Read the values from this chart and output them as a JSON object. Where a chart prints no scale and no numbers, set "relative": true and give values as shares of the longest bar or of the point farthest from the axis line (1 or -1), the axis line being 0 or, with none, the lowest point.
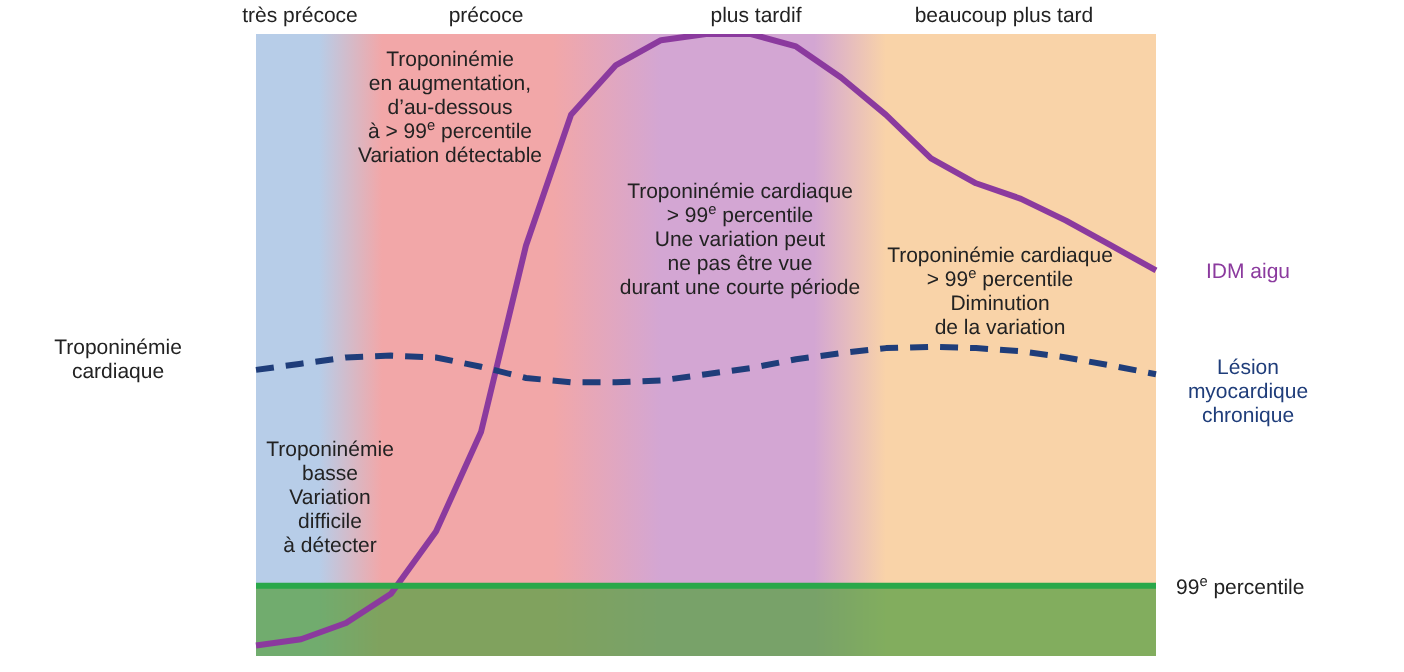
{
  "chart_data": {
    "type": "line",
    "relative": true,
    "ylabel": "Troponinémie cardiaque",
    "categories": [
      null,
      null,
      null,
      null,
      null,
      null,
      null,
      null,
      null,
      null,
      null,
      null,
      null,
      null,
      null,
      null,
      null,
      null,
      null,
      null,
      null
    ],
    "series": [
      {
        "name": "IDM aigu",
        "color": "#8b3a9e",
        "line_style": "solid",
        "values": [
          0.017,
          0.027,
          0.053,
          0.1,
          0.2,
          0.36,
          0.66,
          0.87,
          0.95,
          0.99,
          1,
          1,
          0.98,
          0.93,
          0.87,
          0.8,
          0.76,
          0.735,
          0.7,
          0.66,
          0.62
        ]
      },
      {
        "name": "Lésion myocardique chronique",
        "color": "#1f3d7a",
        "line_style": "dashed",
        "values": [
          0.46,
          0.47,
          0.48,
          0.483,
          0.48,
          0.465,
          0.447,
          0.44,
          0.44,
          0.443,
          0.453,
          0.463,
          0.477,
          0.487,
          0.495,
          0.497,
          0.495,
          0.49,
          0.48,
          0.467,
          0.453
        ]
      }
    ],
    "bands": [
      {
        "axis": "y",
        "from": 0,
        "to": 0.113,
        "color": "#5aa046"
      }
    ],
    "ref_lines": [
      {
        "axis": "y",
        "value": 0.113,
        "label": "99$^{e}$ percentile",
        "color": "#2aa84a"
      }
    ],
    "annotations": [
      "très précoce",
      "précoce",
      "plus tardif",
      "beaucoup plus tard",
      "Troponinémie\nen augmentation,\nd’au-dessous\nà > 99$^{e}$ percentile\nVariation détectable",
      "Troponinémie cardiaque\n> 99$^{e}$ percentile\nUne variation peut\nne pas être vue\ndurant une courte période",
      "Troponinémie cardiaque\n> 99$^{e}$ percentile\nDiminution\nde la variation",
      "Troponinémie\nbasse\nVariation\ndifficile\nà détecter"
    ]
  }
}
